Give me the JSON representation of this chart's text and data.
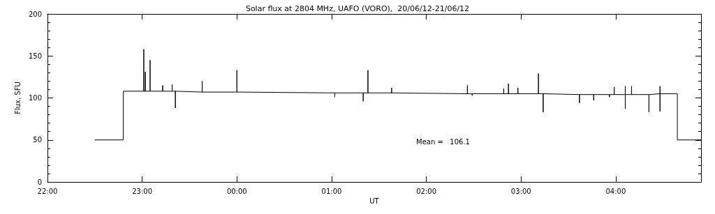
{
  "chart_data": {
    "type": "line",
    "title": "Solar flux at 2804 MHz, UAFO (VORO),  20/06/12-21/06/12",
    "xlabel": "UT",
    "ylabel": "Flux, SFU",
    "annotations": [
      "Mean =   106.1"
    ],
    "xlim": [
      "--06-20T22:00",
      "--06-21T04:54"
    ],
    "xticks": [
      {
        "value": "--06-20T22:00",
        "label": "22:00"
      },
      {
        "value": "--06-20T23:00",
        "label": "23:00"
      },
      {
        "value": "--06-21T00:00",
        "label": "00:00"
      },
      {
        "value": "--06-21T01:00",
        "label": "01:00"
      },
      {
        "value": "--06-21T02:00",
        "label": "02:00"
      },
      {
        "value": "--06-21T03:00",
        "label": "03:00"
      },
      {
        "value": "--06-21T04:00",
        "label": "04:00"
      }
    ],
    "ylim": [
      0,
      200
    ],
    "yticks": [
      0,
      50,
      100,
      150,
      200
    ],
    "grid": false,
    "marker": "none",
    "line_style": "solid",
    "series": [
      {
        "color": "#000000",
        "x": [
          "--06-20T22:30",
          "--06-20T22:48",
          "--06-20T22:48",
          "--06-20T23:01",
          "--06-20T23:01",
          "--06-20T23:01",
          "--06-20T23:02",
          "--06-20T23:02",
          "--06-20T23:02",
          "--06-20T23:05",
          "--06-20T23:05",
          "--06-20T23:05",
          "--06-20T23:13",
          "--06-20T23:13",
          "--06-20T23:13",
          "--06-20T23:19",
          "--06-20T23:19",
          "--06-20T23:19",
          "--06-20T23:21",
          "--06-20T23:21",
          "--06-20T23:21",
          "--06-20T23:38",
          "--06-20T23:38",
          "--06-20T23:38",
          "--06-21T00:00",
          "--06-21T00:00",
          "--06-21T00:00",
          "--06-21T01:02",
          "--06-21T01:02",
          "--06-21T01:02",
          "--06-21T01:20",
          "--06-21T01:20",
          "--06-21T01:20",
          "--06-21T01:23",
          "--06-21T01:23",
          "--06-21T01:23",
          "--06-21T01:38",
          "--06-21T01:38",
          "--06-21T01:38",
          "--06-21T02:26",
          "--06-21T02:26",
          "--06-21T02:26",
          "--06-21T02:29",
          "--06-21T02:29",
          "--06-21T02:29",
          "--06-21T02:49",
          "--06-21T02:49",
          "--06-21T02:49",
          "--06-21T02:52",
          "--06-21T02:52",
          "--06-21T02:52",
          "--06-21T02:58",
          "--06-21T02:58",
          "--06-21T02:58",
          "--06-21T03:11",
          "--06-21T03:11",
          "--06-21T03:11",
          "--06-21T03:14",
          "--06-21T03:14",
          "--06-21T03:14",
          "--06-21T03:37",
          "--06-21T03:37",
          "--06-21T03:37",
          "--06-21T03:46",
          "--06-21T03:46",
          "--06-21T03:46",
          "--06-21T03:56",
          "--06-21T03:56",
          "--06-21T03:56",
          "--06-21T03:59",
          "--06-21T03:59",
          "--06-21T03:59",
          "--06-21T04:06",
          "--06-21T04:06",
          "--06-21T04:06",
          "--06-21T04:06",
          "--06-21T04:10",
          "--06-21T04:10",
          "--06-21T04:10",
          "--06-21T04:21",
          "--06-21T04:21",
          "--06-21T04:21",
          "--06-21T04:28",
          "--06-21T04:28",
          "--06-21T04:28",
          "--06-21T04:28",
          "--06-21T04:39",
          "--06-21T04:39",
          "--06-21T04:54"
        ],
        "values": [
          50,
          50,
          108,
          108,
          158,
          108,
          108,
          131,
          108,
          108,
          145,
          108,
          108,
          115,
          108,
          108,
          116,
          108,
          108,
          88,
          108,
          107,
          120,
          107,
          107,
          133,
          107,
          106,
          101,
          106,
          106,
          96,
          106,
          106,
          133,
          106,
          106,
          112,
          106,
          105,
          115,
          105,
          105,
          103,
          105,
          105,
          111,
          105,
          105,
          117,
          105,
          105,
          112,
          105,
          105,
          129,
          105,
          105,
          83,
          105,
          104,
          94,
          104,
          104,
          97,
          104,
          104,
          101,
          104,
          104,
          113,
          104,
          104,
          114,
          87,
          104,
          104,
          114,
          104,
          104,
          83,
          104,
          105,
          114,
          84,
          105,
          105,
          50,
          50
        ]
      }
    ]
  }
}
